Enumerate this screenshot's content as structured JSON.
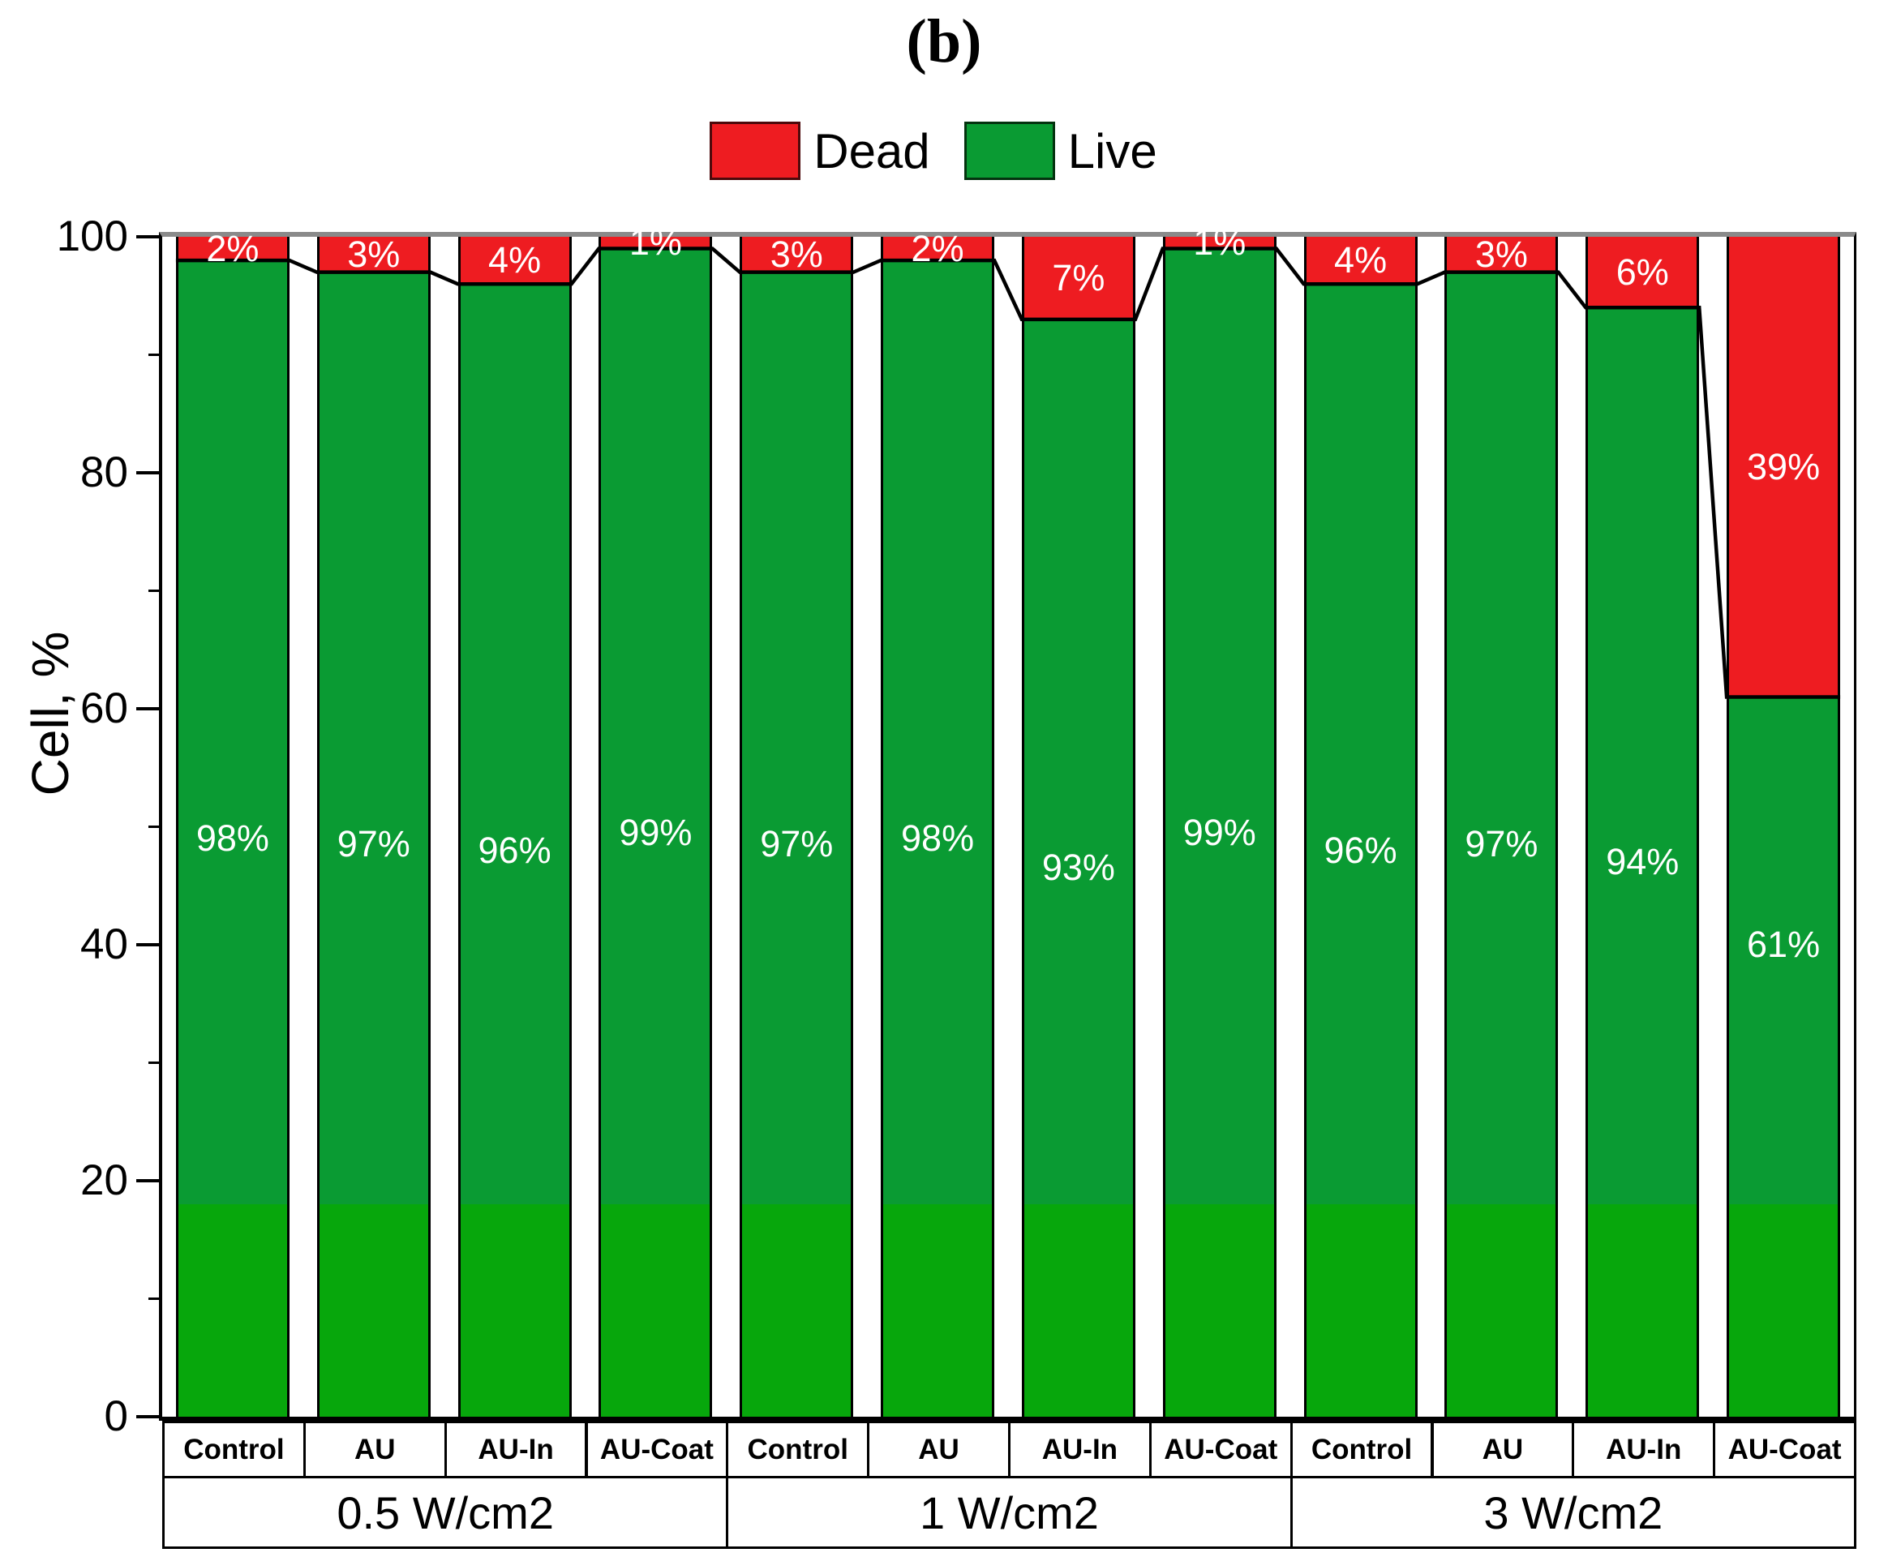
{
  "figure_label": "(b)",
  "legend": {
    "items": [
      {
        "name": "dead",
        "label": "Dead",
        "color": "#ee1c21",
        "border": "#4d090b"
      },
      {
        "name": "live",
        "label": "Live",
        "color": "#0a9b33",
        "border": "#04330f"
      }
    ]
  },
  "y_axis": {
    "title": "Cell, %",
    "min": 0,
    "max": 100,
    "major_ticks": [
      0,
      20,
      40,
      60,
      80,
      100
    ],
    "minor_ticks": [
      10,
      30,
      50,
      70,
      90
    ]
  },
  "x_axis": {
    "bar_labels": [
      "Control",
      "AU",
      "AU-In",
      "AU-Coat"
    ],
    "group_labels": [
      "0.5 W/cm2",
      "1 W/cm2",
      "3 W/cm2"
    ]
  },
  "chart_data": {
    "type": "bar",
    "stacked": true,
    "title": "(b)",
    "ylabel": "Cell, %",
    "ylim": [
      0,
      100
    ],
    "grid": false,
    "legend_position": "top-center",
    "series": [
      "Dead",
      "Live"
    ],
    "label_format": "{value}%",
    "groups": [
      {
        "group": "0.5 W/cm2",
        "bars": [
          {
            "category": "Control",
            "live_pct": 98,
            "dead_pct": 2,
            "live_label": "98%",
            "dead_label": "2%"
          },
          {
            "category": "AU",
            "live_pct": 97,
            "dead_pct": 3,
            "live_label": "97%",
            "dead_label": "3%"
          },
          {
            "category": "AU-In",
            "live_pct": 96,
            "dead_pct": 4,
            "live_label": "96%",
            "dead_label": "4%"
          },
          {
            "category": "AU-Coat",
            "live_pct": 99,
            "dead_pct": 1,
            "live_label": "99%",
            "dead_label": "1%"
          }
        ]
      },
      {
        "group": "1 W/cm2",
        "bars": [
          {
            "category": "Control",
            "live_pct": 97,
            "dead_pct": 3,
            "live_label": "97%",
            "dead_label": "3%"
          },
          {
            "category": "AU",
            "live_pct": 98,
            "dead_pct": 2,
            "live_label": "98%",
            "dead_label": "2%"
          },
          {
            "category": "AU-In",
            "live_pct": 93,
            "dead_pct": 7,
            "live_label": "93%",
            "dead_label": "7%"
          },
          {
            "category": "AU-Coat",
            "live_pct": 99,
            "dead_pct": 1,
            "live_label": "99%",
            "dead_label": "1%"
          }
        ]
      },
      {
        "group": "3 W/cm2",
        "bars": [
          {
            "category": "Control",
            "live_pct": 96,
            "dead_pct": 4,
            "live_label": "96%",
            "dead_label": "4%"
          },
          {
            "category": "AU",
            "live_pct": 97,
            "dead_pct": 3,
            "live_label": "97%",
            "dead_label": "3%"
          },
          {
            "category": "AU-In",
            "live_pct": 94,
            "dead_pct": 6,
            "live_label": "94%",
            "dead_label": "6%"
          },
          {
            "category": "AU-Coat",
            "live_pct": 61,
            "dead_pct": 39,
            "live_label": "61%",
            "dead_label": "39%"
          }
        ]
      }
    ],
    "colors": {
      "dead": "#ee1c21",
      "live": "#0a9b33",
      "live_bottom_band": "#07a70c",
      "live_bottom_band_top_value": 18,
      "frame_top": "#8a8a8a",
      "profile_line": "#000000",
      "value_label_text": "#ffffff"
    }
  }
}
